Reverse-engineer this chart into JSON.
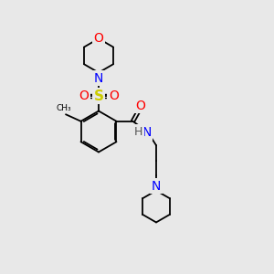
{
  "background_color": "#e8e8e8",
  "bond_color": "#000000",
  "nitrogen_color": "#0000ff",
  "oxygen_color": "#ff0000",
  "sulfur_color": "#cccc00",
  "h_color": "#555555",
  "font_size": 8,
  "figsize": [
    3.0,
    3.0
  ],
  "dpi": 100,
  "xlim": [
    0,
    10
  ],
  "ylim": [
    0,
    10
  ]
}
